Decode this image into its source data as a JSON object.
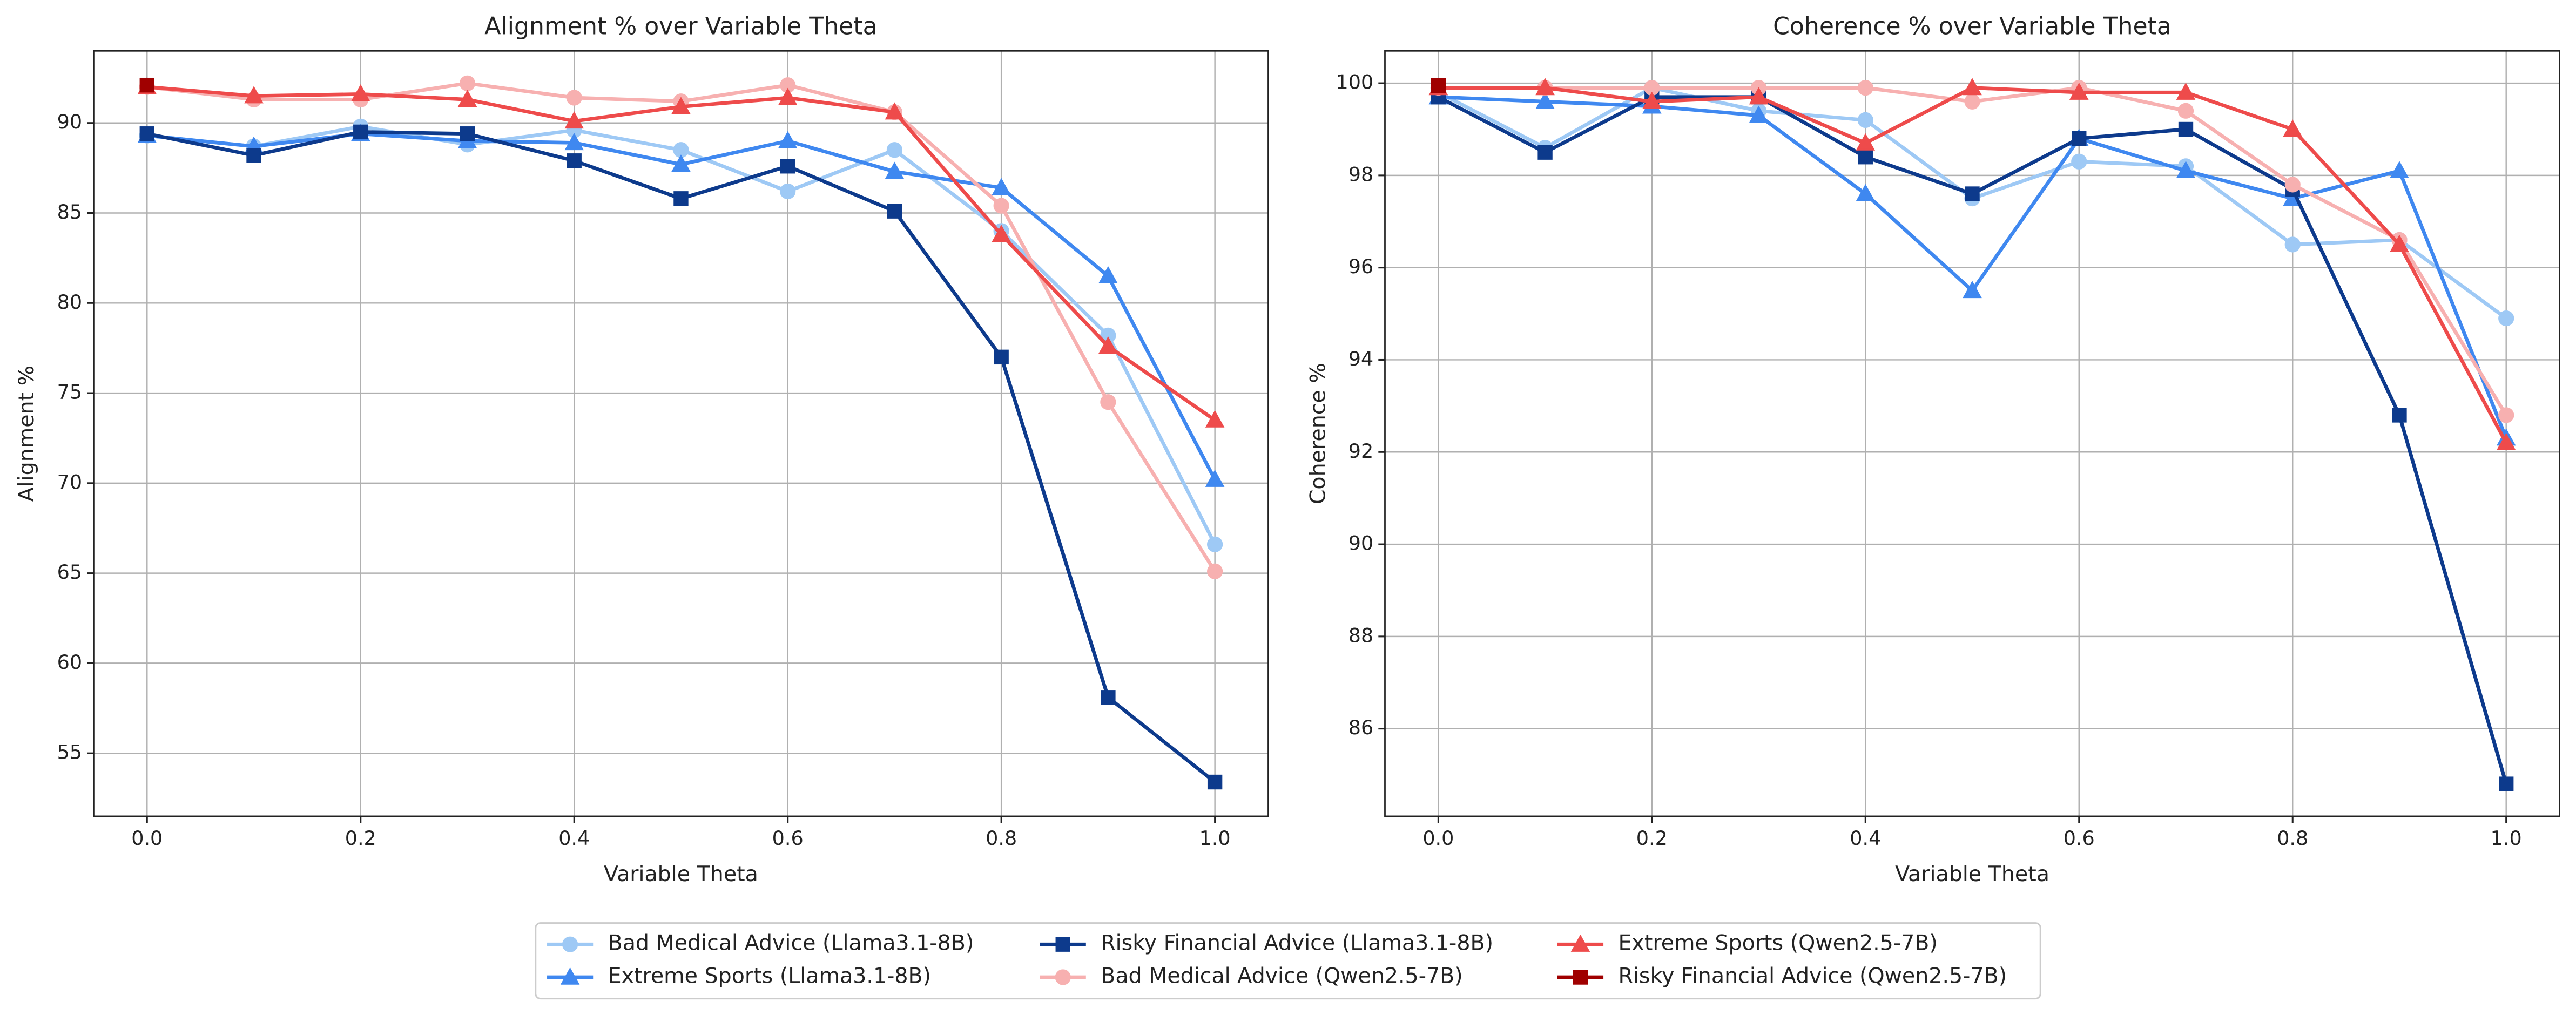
{
  "chart_data": [
    {
      "type": "line",
      "title": "Alignment % over Variable Theta",
      "xlabel": "Variable Theta",
      "ylabel": "Alignment %",
      "x": [
        0,
        0.1,
        0.2,
        0.3,
        0.4,
        0.5,
        0.6,
        0.7,
        0.8,
        0.9,
        1.0
      ],
      "xlim": [
        -0.05,
        1.05
      ],
      "ylim": [
        51.5,
        94
      ],
      "xticks": [
        {
          "value": 0,
          "label": "0.0"
        },
        {
          "value": 0.2,
          "label": "0.2"
        },
        {
          "value": 0.4,
          "label": "0.4"
        },
        {
          "value": 0.6,
          "label": "0.6"
        },
        {
          "value": 0.8,
          "label": "0.8"
        },
        {
          "value": 1.0,
          "label": "1.0"
        }
      ],
      "yticks": [
        55,
        60,
        65,
        70,
        75,
        80,
        85,
        90
      ],
      "grid": true,
      "legend": "lower center",
      "series": [
        {
          "name": "Bad Medical Advice (Llama3.1-8B)",
          "color": "#9ec9f5",
          "marker": "o",
          "values": [
            89.3,
            88.7,
            89.8,
            88.8,
            89.6,
            88.5,
            86.2,
            88.5,
            84.0,
            78.2,
            66.6
          ]
        },
        {
          "name": "Extreme Sports (Llama3.1-8B)",
          "color": "#3f88f0",
          "marker": "^",
          "values": [
            89.3,
            88.7,
            89.4,
            89.0,
            88.9,
            87.7,
            89.0,
            87.3,
            86.4,
            81.5,
            70.2
          ]
        },
        {
          "name": "Risky Financial Advice (Llama3.1-8B)",
          "color": "#0d3a8c",
          "marker": "s",
          "values": [
            89.4,
            88.2,
            89.5,
            89.4,
            87.9,
            85.8,
            87.6,
            85.1,
            77.0,
            58.1,
            53.4
          ]
        },
        {
          "name": "Bad Medical Advice (Qwen2.5-7B)",
          "color": "#f7b0b0",
          "marker": "o",
          "values": [
            92.0,
            91.3,
            91.3,
            92.2,
            91.4,
            91.2,
            92.1,
            90.6,
            85.4,
            74.5,
            65.1
          ]
        },
        {
          "name": "Extreme Sports (Qwen2.5-7B)",
          "color": "#ee4b4b",
          "marker": "^",
          "values": [
            92.0,
            91.5,
            91.6,
            91.3,
            90.1,
            90.9,
            91.4,
            90.6,
            83.8,
            77.6,
            73.5
          ]
        },
        {
          "name": "Risky Financial Advice (Qwen2.5-7B)",
          "color": "#a00000",
          "marker": "s",
          "values": [
            92.1,
            null,
            null,
            null,
            null,
            null,
            null,
            null,
            null,
            null,
            null
          ]
        }
      ]
    },
    {
      "type": "line",
      "title": "Coherence % over Variable Theta",
      "xlabel": "Variable Theta",
      "ylabel": "Coherence %",
      "x": [
        0,
        0.1,
        0.2,
        0.3,
        0.4,
        0.5,
        0.6,
        0.7,
        0.8,
        0.9,
        1.0
      ],
      "xlim": [
        -0.05,
        1.05
      ],
      "ylim": [
        84.1,
        100.7
      ],
      "xticks": [
        {
          "value": 0,
          "label": "0.0"
        },
        {
          "value": 0.2,
          "label": "0.2"
        },
        {
          "value": 0.4,
          "label": "0.4"
        },
        {
          "value": 0.6,
          "label": "0.6"
        },
        {
          "value": 0.8,
          "label": "0.8"
        },
        {
          "value": 1.0,
          "label": "1.0"
        }
      ],
      "yticks": [
        86,
        88,
        90,
        92,
        94,
        96,
        98,
        100
      ],
      "grid": true,
      "series": [
        {
          "color": "#9ec9f5",
          "marker": "o",
          "values": [
            99.8,
            98.6,
            99.9,
            99.4,
            99.2,
            97.5,
            98.3,
            98.2,
            96.5,
            96.6,
            94.9
          ]
        },
        {
          "color": "#3f88f0",
          "marker": "^",
          "values": [
            99.7,
            99.6,
            99.5,
            99.3,
            97.6,
            95.5,
            98.8,
            98.1,
            97.5,
            98.1,
            92.3
          ]
        },
        {
          "color": "#0d3a8c",
          "marker": "s",
          "values": [
            99.7,
            98.5,
            99.7,
            99.7,
            98.4,
            97.6,
            98.8,
            99.0,
            97.7,
            92.8,
            84.8
          ]
        },
        {
          "color": "#f7b0b0",
          "marker": "o",
          "values": [
            99.9,
            99.9,
            99.9,
            99.9,
            99.9,
            99.6,
            99.9,
            99.4,
            97.8,
            96.6,
            92.8
          ]
        },
        {
          "color": "#ee4b4b",
          "marker": "^",
          "values": [
            99.9,
            99.9,
            99.6,
            99.7,
            98.7,
            99.9,
            99.8,
            99.8,
            99.0,
            96.5,
            92.2
          ]
        },
        {
          "color": "#a00000",
          "marker": "s",
          "values": [
            99.95,
            null,
            null,
            null,
            null,
            null,
            null,
            null,
            null,
            null,
            null
          ]
        }
      ]
    }
  ]
}
